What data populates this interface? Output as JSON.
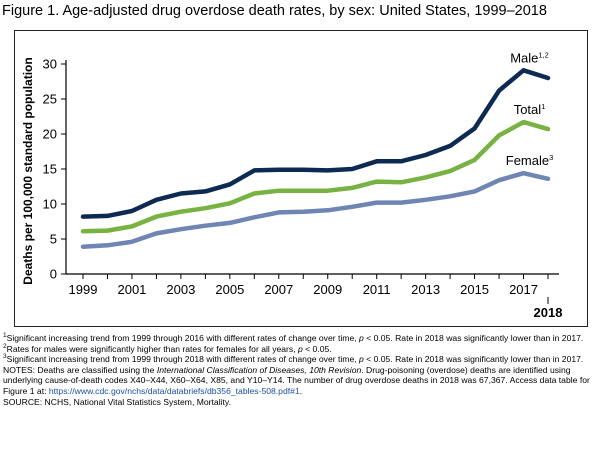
{
  "figure": {
    "title": "Figure 1. Age-adjusted drug overdose death rates, by sex: United States, 1999–2018"
  },
  "chart_data": {
    "type": "line",
    "ylabel": "Deaths per 100,000 standard population",
    "xlabel": "",
    "ylim": [
      0,
      30
    ],
    "yticks": [
      "0",
      "5",
      "10",
      "15",
      "20",
      "25",
      "30"
    ],
    "x": [
      1999,
      2000,
      2001,
      2002,
      2003,
      2004,
      2005,
      2006,
      2007,
      2008,
      2009,
      2010,
      2011,
      2012,
      2013,
      2014,
      2015,
      2016,
      2017,
      2018
    ],
    "xticks": [
      "1999",
      "2001",
      "2003",
      "2005",
      "2007",
      "2009",
      "2011",
      "2013",
      "2015",
      "2017"
    ],
    "xtick_extra": "2018",
    "grid": false,
    "series": [
      {
        "name": "Male",
        "sup": "1,2",
        "color": "#0c2a52",
        "values": [
          8.2,
          8.3,
          9.0,
          10.6,
          11.5,
          11.8,
          12.8,
          14.8,
          14.9,
          14.9,
          14.8,
          15.0,
          16.1,
          16.1,
          17.0,
          18.3,
          20.8,
          26.2,
          29.1,
          28.0
        ]
      },
      {
        "name": "Total",
        "sup": "1",
        "color": "#77b243",
        "values": [
          6.1,
          6.2,
          6.8,
          8.2,
          8.9,
          9.4,
          10.1,
          11.5,
          11.9,
          11.9,
          11.9,
          12.3,
          13.2,
          13.1,
          13.8,
          14.7,
          16.3,
          19.8,
          21.7,
          20.7
        ]
      },
      {
        "name": "Female",
        "sup": "3",
        "color": "#6f86b4",
        "values": [
          3.9,
          4.1,
          4.6,
          5.8,
          6.4,
          6.9,
          7.3,
          8.1,
          8.8,
          8.9,
          9.1,
          9.6,
          10.2,
          10.2,
          10.6,
          11.1,
          11.8,
          13.4,
          14.4,
          13.6
        ]
      }
    ]
  },
  "notes": {
    "fn1_mark": "1",
    "fn1_text": "Significant increasing trend from 1999 through 2016 with different rates of change over time, ",
    "fn1_p": "p",
    "fn1_text2": " < 0.05. Rate in 2018 was significantly lower than in 2017.",
    "fn2_mark": "2",
    "fn2_text": "Rates for males were significantly higher than rates for females for all years, ",
    "fn2_p": "p",
    "fn2_text2": " < 0.05.",
    "fn3_mark": "3",
    "fn3_text": "Significant increasing trend from 1999 through 2018 with different rates of change over time, ",
    "fn3_p": "p",
    "fn3_text2": " < 0.05. Rate in 2018 was significantly lower than in 2017.",
    "notes_lead": "NOTES: Deaths are classified using the ",
    "notes_icd": "International Classification of Diseases, 10th Revision",
    "notes_rest": ". Drug-poisoning (overdose) deaths are identified using underlying cause-of-death codes X40–X44, X60–X64, X85, and Y10–Y14. The number of drug overdose deaths in 2018 was 67,367. Access data table for Figure 1 at: ",
    "notes_link": "https://www.cdc.gov/nchs/data/databriefs/db356_tables-508.pdf#1",
    "notes_end": ".",
    "source": "SOURCE: NCHS, National Vital Statistics System, Mortality."
  }
}
